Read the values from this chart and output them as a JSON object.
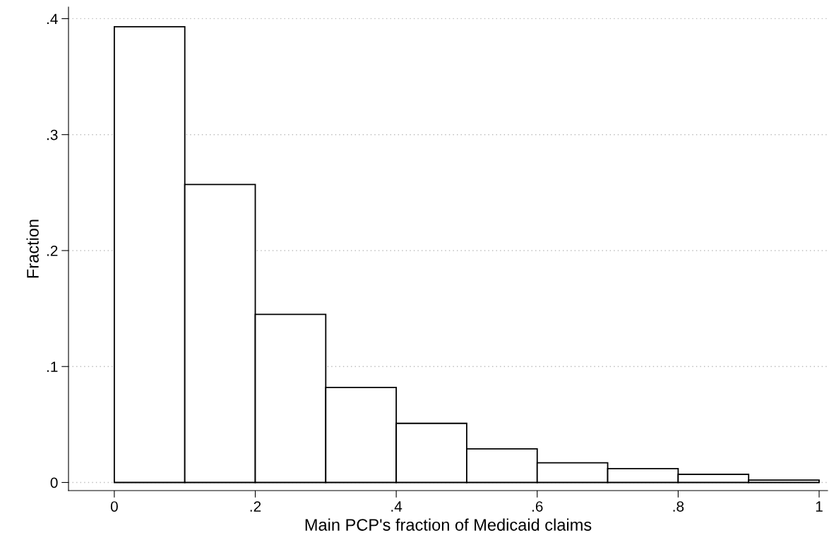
{
  "chart_data": {
    "type": "histogram",
    "xlabel": "Main PCP's fraction of Medicaid claims",
    "ylabel": "Fraction",
    "bins": [
      0,
      0.1,
      0.2,
      0.3,
      0.4,
      0.5,
      0.6,
      0.7,
      0.8,
      0.9,
      1
    ],
    "values": [
      0.393,
      0.257,
      0.145,
      0.082,
      0.051,
      0.029,
      0.017,
      0.012,
      0.007,
      0.002
    ],
    "color": "#ffffff",
    "xlim": [
      -0.065,
      1.012
    ],
    "ylim": [
      -0.007,
      0.41
    ],
    "xticks": [
      0,
      {
        "value": 0.2,
        "label": ".2"
      },
      {
        "value": 0.4,
        "label": ".4"
      },
      {
        "value": 0.6,
        "label": ".6"
      },
      {
        "value": 0.8,
        "label": ".8"
      },
      1
    ],
    "yticks": [
      0,
      {
        "value": 0.1,
        "label": ".1"
      },
      {
        "value": 0.2,
        "label": ".2"
      },
      {
        "value": 0.3,
        "label": ".3"
      },
      {
        "value": 0.4,
        "label": ".4"
      }
    ],
    "grid": "y"
  }
}
